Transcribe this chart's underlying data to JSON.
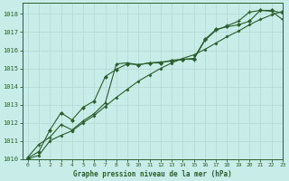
{
  "xlabel": "Graphe pression niveau de la mer (hPa)",
  "ylim": [
    1010,
    1018.6
  ],
  "xlim": [
    -0.5,
    23
  ],
  "yticks": [
    1010,
    1011,
    1012,
    1013,
    1014,
    1015,
    1016,
    1017,
    1018
  ],
  "xticks": [
    0,
    1,
    2,
    3,
    4,
    5,
    6,
    7,
    8,
    9,
    10,
    11,
    12,
    13,
    14,
    15,
    16,
    17,
    18,
    19,
    20,
    21,
    22,
    23
  ],
  "bg_color": "#c8ece8",
  "grid_color": "#b0d8d0",
  "line_color": "#2a5e2a",
  "series1_y": [
    1010.1,
    1010.8,
    1011.2,
    1011.9,
    1011.6,
    1012.1,
    1012.5,
    1013.1,
    1015.25,
    1015.3,
    1015.2,
    1015.3,
    1015.35,
    1015.4,
    1015.5,
    1015.5,
    1016.55,
    1017.1,
    1017.35,
    1017.6,
    1018.1,
    1018.2,
    1018.15,
    1017.7
  ],
  "series2_y": [
    1010.05,
    1010.4,
    1011.6,
    1012.55,
    1012.15,
    1012.85,
    1013.2,
    1014.55,
    1014.95,
    1015.25,
    1015.2,
    1015.3,
    1015.3,
    1015.45,
    1015.5,
    1015.55,
    1016.6,
    1017.15,
    1017.3,
    1017.4,
    1017.6,
    1018.2,
    1018.2,
    1018.05
  ],
  "series3_y": [
    1010.0,
    1010.2,
    1011.0,
    1011.3,
    1011.55,
    1012.0,
    1012.4,
    1012.9,
    1013.4,
    1013.85,
    1014.3,
    1014.65,
    1015.0,
    1015.3,
    1015.55,
    1015.75,
    1016.05,
    1016.4,
    1016.75,
    1017.05,
    1017.4,
    1017.7,
    1017.95,
    1018.15
  ]
}
